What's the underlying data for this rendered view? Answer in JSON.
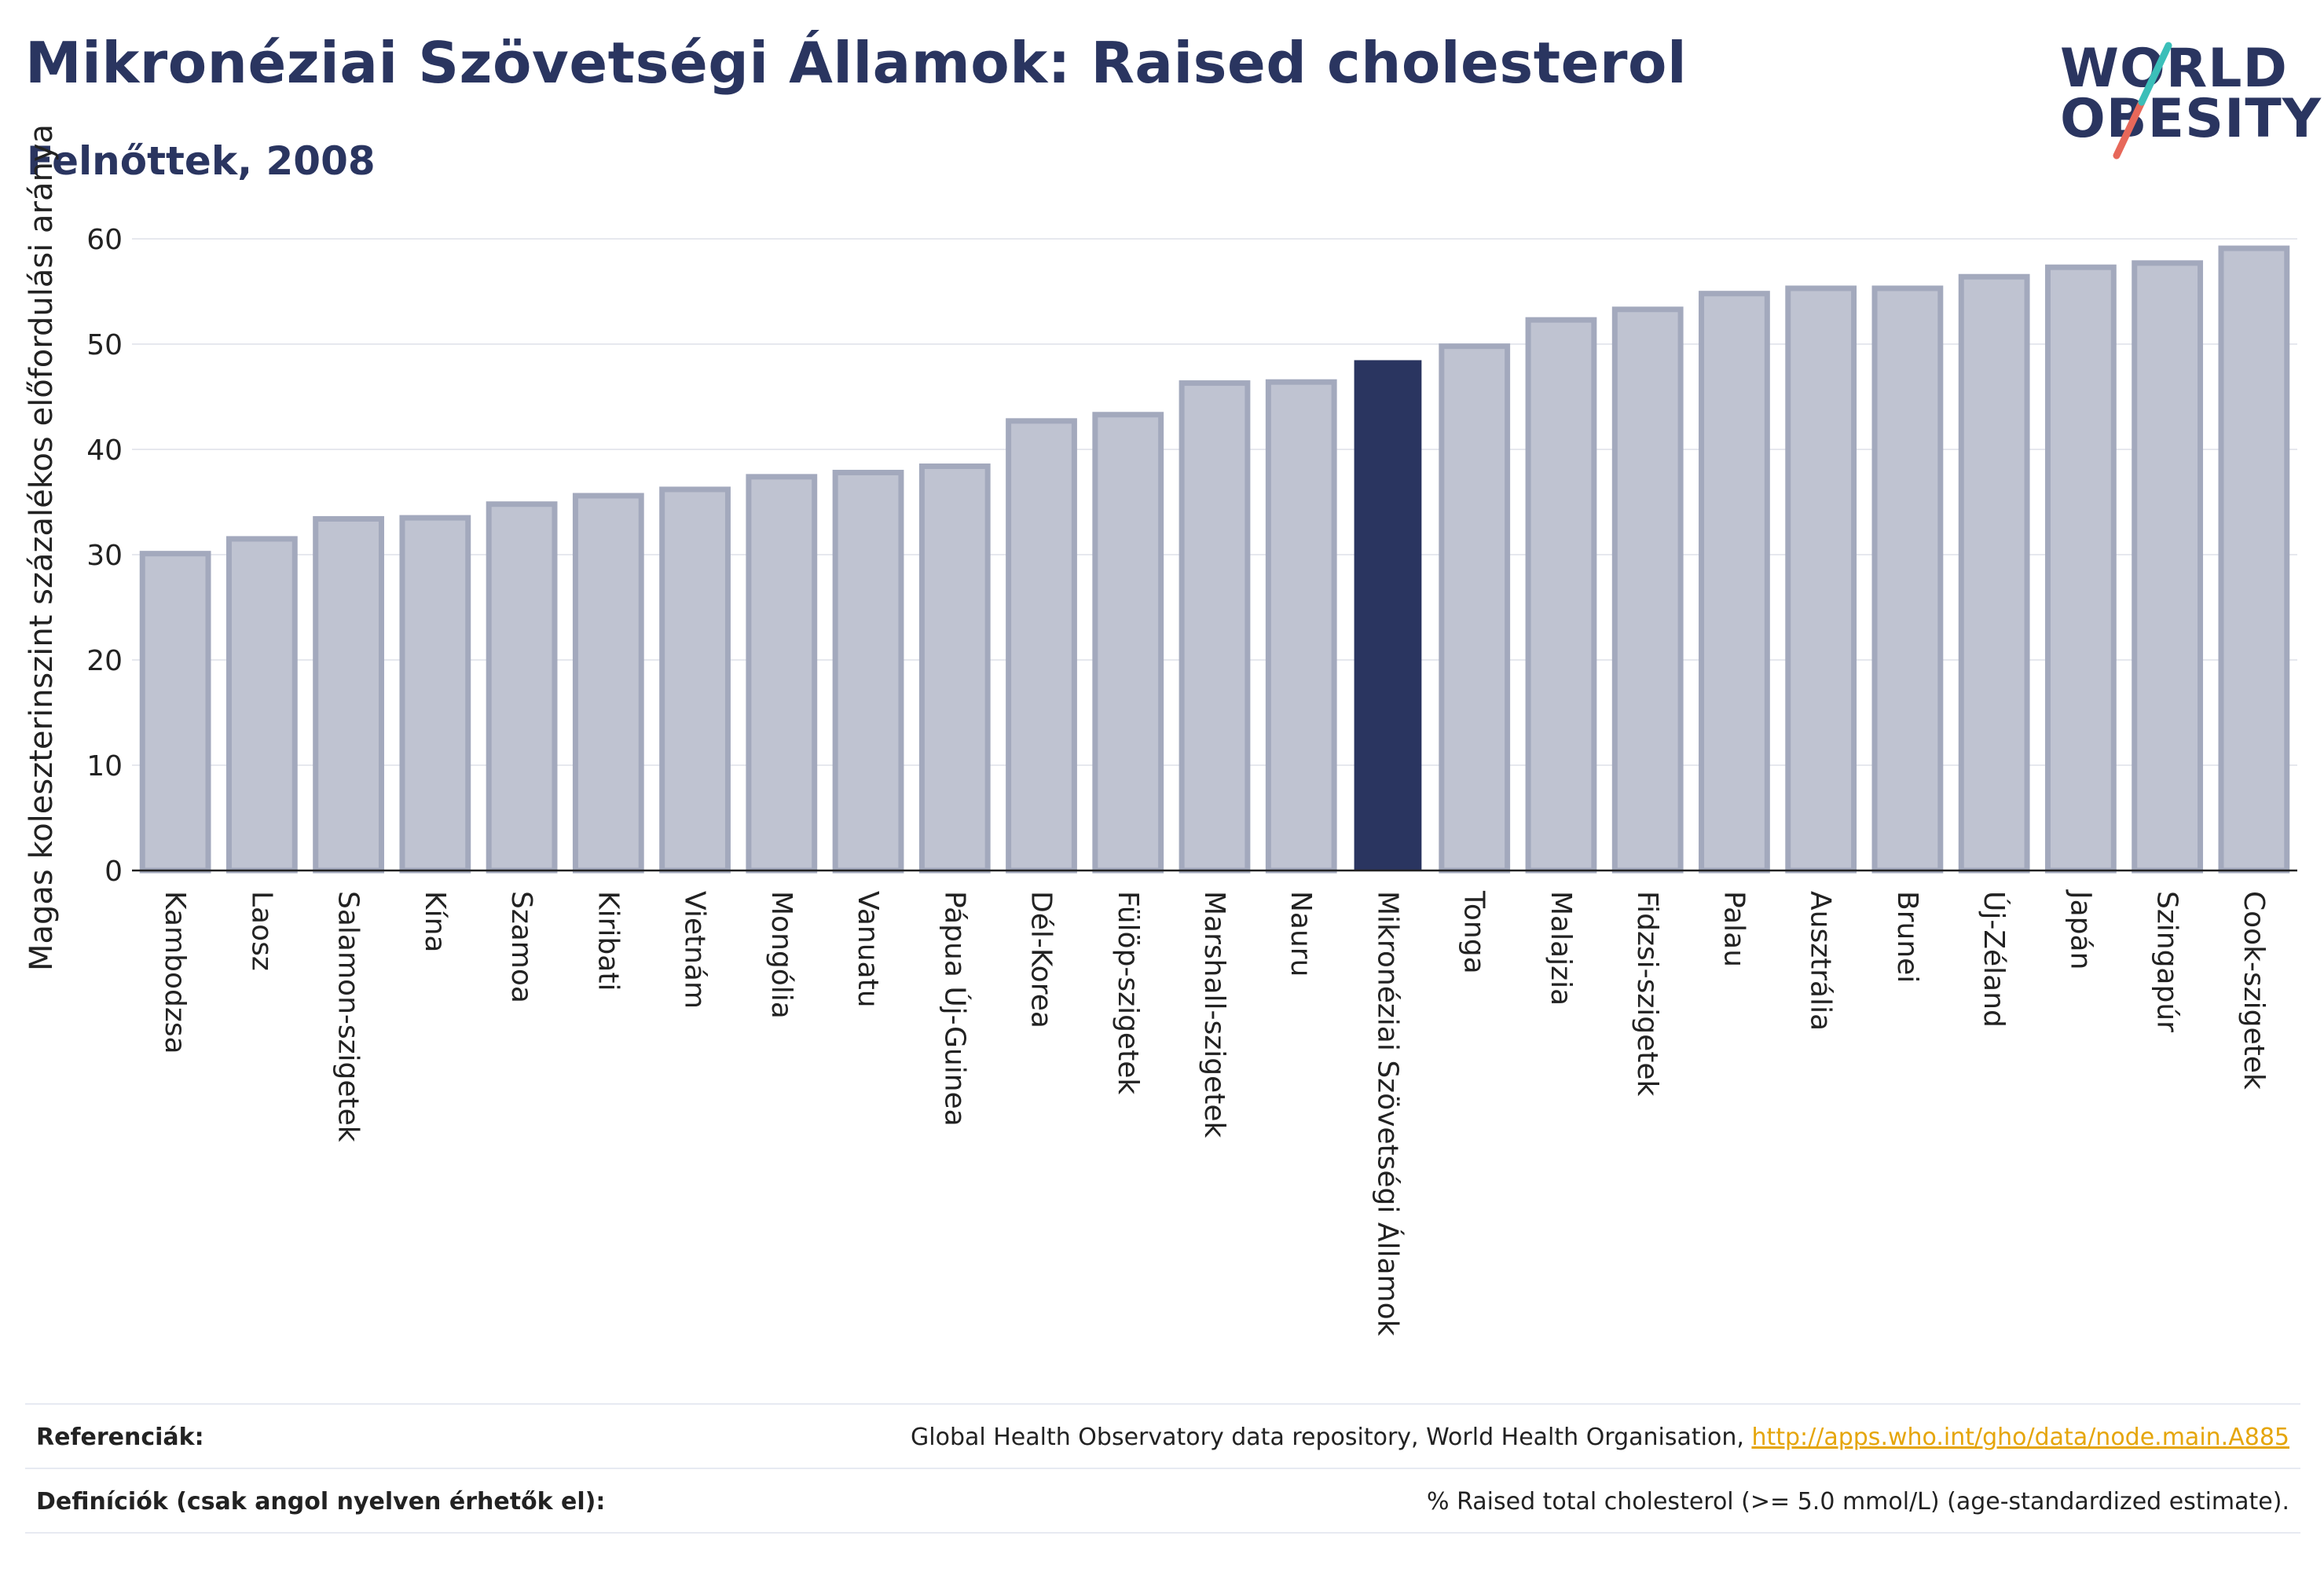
{
  "header": {
    "title": "Mikronéziai Szövetségi Államok: Raised cholesterol",
    "subtitle": "Felnőttek, 2008"
  },
  "logo": {
    "line1": "WORLD",
    "line2": "OBESITY"
  },
  "colors": {
    "highlight": "#2a3560",
    "bar_fill": "#bfc3d1",
    "bar_stroke": "#a3a9bd",
    "grid": "#e6e8ee",
    "axis": "#222222",
    "logo_teal": "#3bbfb9",
    "logo_coral": "#e7685a",
    "link": "#e5a50a"
  },
  "chart_data": {
    "type": "bar",
    "ylabel": "Magas koleszterinszint százalékos előfordulási aránya",
    "ylim": [
      0,
      60
    ],
    "yticks": [
      0,
      10,
      20,
      30,
      40,
      50,
      60
    ],
    "grid": true,
    "highlight_category": "Mikronéziai Szövetségi Államok",
    "categories": [
      "Kambodzsa",
      "Laosz",
      "Salamon-szigetek",
      "Kína",
      "Szamoa",
      "Kiribati",
      "Vietnám",
      "Mongólia",
      "Vanuatu",
      "Pápua Új-Guinea",
      "Dél-Korea",
      "Fülöp-szigetek",
      "Marshall-szigetek",
      "Nauru",
      "Mikronéziai Szövetségi Államok",
      "Tonga",
      "Malajzia",
      "Fidzsi-szigetek",
      "Palau",
      "Ausztrália",
      "Brunei",
      "Új-Zéland",
      "Japán",
      "Szingapúr",
      "Cook-szigetek"
    ],
    "values": [
      30.1,
      31.5,
      33.4,
      33.5,
      34.8,
      35.6,
      36.2,
      37.4,
      37.8,
      38.4,
      42.7,
      43.3,
      46.3,
      46.4,
      48.4,
      49.8,
      52.3,
      53.3,
      54.8,
      55.3,
      55.3,
      56.4,
      57.3,
      57.7,
      59.1
    ]
  },
  "references": {
    "label": "Referenciák:",
    "text": "Global Health Observatory data repository, World Health Organisation, ",
    "link": "http://apps.who.int/gho/data/node.main.A885"
  },
  "definitions": {
    "label": "Definíciók (csak angol nyelven érhetők el):",
    "text": "% Raised total cholesterol (>= 5.0 mmol/L) (age-standardized estimate)."
  }
}
